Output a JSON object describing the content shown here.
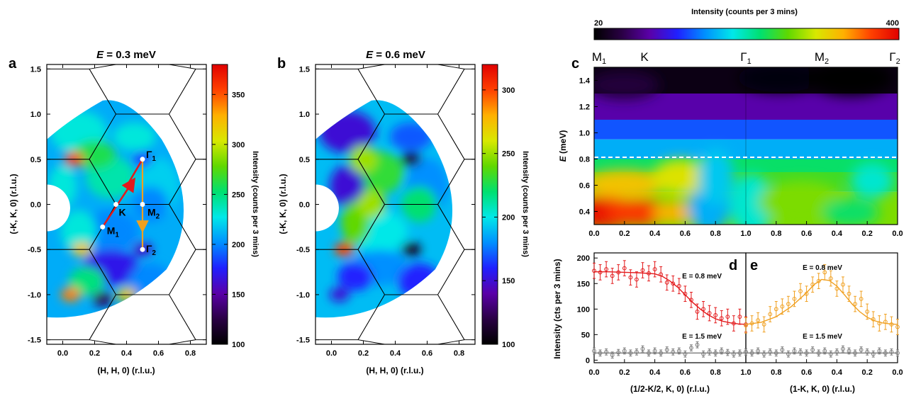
{
  "figure": {
    "colors": {
      "red": "#e31a1c",
      "orange": "#f0a020",
      "gray": "#7a7a7a",
      "hex": "#000000"
    },
    "colormap": [
      "#000000",
      "#2a0044",
      "#5a00a8",
      "#2020ff",
      "#0090ff",
      "#00e8e8",
      "#00e070",
      "#60d800",
      "#d8e800",
      "#ffb000",
      "#ff4000",
      "#e00000"
    ]
  },
  "panels": {
    "a": {
      "letter": "a",
      "title_E": "E",
      "title_val": " = 0.3 meV",
      "xlabel": "(H, H, 0) (r.l.u.)",
      "ylabel": "(-K, K, 0) (r.l.u.)",
      "xticks": [
        "0.0",
        "0.2",
        "0.4",
        "0.6",
        "0.8"
      ],
      "yticks": [
        "1.5",
        "1.0",
        "0.5",
        "0.0",
        "-0.5",
        "-1.0",
        "-1.5"
      ],
      "colorbar": {
        "label": "Intensity (counts per 3 mins)",
        "ticks": [
          "350",
          "300",
          "250",
          "200",
          "150",
          "100"
        ]
      },
      "points": {
        "gamma1": "Γ",
        "gamma1_sub": "1",
        "K": "K",
        "M2": "M",
        "M2_sub": "2",
        "M1": "M",
        "M1_sub": "1",
        "gamma2": "Γ",
        "gamma2_sub": "2"
      }
    },
    "b": {
      "letter": "b",
      "title_E": "E",
      "title_val": " = 0.6 meV",
      "xlabel": "(H, H, 0) (r.l.u.)",
      "ylabel": "(-K, K, 0) (r.l.u.)",
      "xticks": [
        "0.0",
        "0.2",
        "0.4",
        "0.6",
        "0.8"
      ],
      "yticks": [
        "1.5",
        "1.0",
        "0.5",
        "0.0",
        "-0.5",
        "-1.0",
        "-1.5"
      ],
      "colorbar": {
        "label": "Intensity (counts per 3 mins)",
        "ticks": [
          "300",
          "250",
          "200",
          "150",
          "100"
        ]
      }
    },
    "c": {
      "letter": "c",
      "colorbar": {
        "label": "Intensity (counts per 3 mins)",
        "min": "20",
        "max": "400"
      },
      "top_labels": {
        "M1": "M",
        "M1_sub": "1",
        "K": "K",
        "G1": "Γ",
        "G1_sub": "1",
        "M2": "M",
        "M2_sub": "2",
        "G2": "Γ",
        "G2_sub": "2"
      },
      "ylabel": "E (meV)",
      "yticks": [
        "1.4",
        "1.2",
        "1.0",
        "0.8",
        "0.6",
        "0.4"
      ],
      "xticks_left": [
        "0.0",
        "0.2",
        "0.4",
        "0.6",
        "0.8",
        "1.0"
      ],
      "xticks_right": [
        "0.8",
        "0.6",
        "0.4",
        "0.2",
        "0.0"
      ]
    },
    "d": {
      "letter": "d",
      "ylabel": "Intensity (cts per 3 mins)",
      "yticks": [
        "200",
        "150",
        "100",
        "50",
        "0"
      ],
      "xlabel": "(1/2-K/2, K, 0) (r.l.u.)",
      "xticks": [
        "0.0",
        "0.2",
        "0.4",
        "0.6",
        "0.8",
        "1.0"
      ],
      "label_high": "E = 0.8 meV",
      "label_low": "E = 1.5 meV"
    },
    "e": {
      "letter": "e",
      "xlabel": "(1-K, K, 0) (r.l.u.)",
      "xticks": [
        "1.0",
        "0.8",
        "0.6",
        "0.4",
        "0.2",
        "0.0"
      ],
      "label_high": "E = 0.8 meV",
      "label_low": "E = 1.5 meV"
    }
  },
  "chart_data": [
    {
      "type": "heatmap",
      "panel": "a",
      "title": "E = 0.3 meV",
      "xlabel": "(H, H, 0) (r.l.u.)",
      "ylabel": "(-K, K, 0) (r.l.u.)",
      "xlim": [
        -0.1,
        0.9
      ],
      "ylim": [
        -1.55,
        1.55
      ],
      "zlim": [
        100,
        380
      ],
      "hotspots": [
        {
          "x": 0.07,
          "y": 0.5,
          "z": 360
        },
        {
          "x": 0.05,
          "y": -1.0,
          "z": 340
        },
        {
          "x": 0.12,
          "y": -0.5,
          "z": 320
        },
        {
          "x": 0.4,
          "y": -1.0,
          "z": 320
        },
        {
          "x": 0.5,
          "y": 0.5,
          "z": 180
        },
        {
          "x": 0.5,
          "y": -0.5,
          "z": 160
        },
        {
          "x": 0.25,
          "y": -1.05,
          "z": 130
        }
      ]
    },
    {
      "type": "heatmap",
      "panel": "b",
      "title": "E = 0.6 meV",
      "xlabel": "(H, H, 0) (r.l.u.)",
      "ylabel": "(-K, K, 0) (r.l.u.)",
      "xlim": [
        -0.1,
        0.9
      ],
      "ylim": [
        -1.55,
        1.55
      ],
      "zlim": [
        100,
        320
      ],
      "hotspots": [
        {
          "x": 0.08,
          "y": -0.5,
          "z": 300
        },
        {
          "x": 0.5,
          "y": 0.5,
          "z": 110
        },
        {
          "x": 0.5,
          "y": -0.5,
          "z": 110
        },
        {
          "x": 0.05,
          "y": -1.0,
          "z": 150
        }
      ]
    },
    {
      "type": "heatmap",
      "panel": "c",
      "ylabel": "E (meV)",
      "ylim": [
        0.3,
        1.5
      ],
      "zlim": [
        20,
        400
      ],
      "cut_energy": 0.8
    },
    {
      "type": "scatter",
      "panel": "d",
      "xlabel": "(1/2-K/2, K, 0) (r.l.u.)",
      "ylabel": "Intensity (cts per 3 mins)",
      "xlim": [
        0,
        1
      ],
      "ylim": [
        -5,
        210
      ],
      "series": [
        {
          "name": "E = 0.8 meV",
          "x": [
            0,
            0.04,
            0.08,
            0.12,
            0.16,
            0.2,
            0.24,
            0.28,
            0.32,
            0.36,
            0.4,
            0.44,
            0.48,
            0.52,
            0.56,
            0.6,
            0.64,
            0.68,
            0.72,
            0.76,
            0.8,
            0.84,
            0.88,
            0.92,
            0.96,
            1.0
          ],
          "y": [
            175,
            172,
            178,
            165,
            172,
            180,
            162,
            158,
            176,
            170,
            178,
            168,
            152,
            150,
            145,
            130,
            118,
            95,
            100,
            92,
            88,
            82,
            85,
            72,
            85,
            70
          ],
          "err": [
            15,
            15,
            15,
            15,
            15,
            15,
            15,
            15,
            15,
            15,
            15,
            15,
            15,
            15,
            15,
            15,
            15,
            15,
            15,
            15,
            15,
            15,
            15,
            15,
            15,
            15
          ],
          "fit": [
            [
              0,
              173
            ],
            [
              0.1,
              173
            ],
            [
              0.2,
              172
            ],
            [
              0.3,
              171
            ],
            [
              0.4,
              169
            ],
            [
              0.45,
              164
            ],
            [
              0.5,
              155
            ],
            [
              0.55,
              143
            ],
            [
              0.6,
              128
            ],
            [
              0.65,
              113
            ],
            [
              0.7,
              100
            ],
            [
              0.75,
              89
            ],
            [
              0.8,
              81
            ],
            [
              0.85,
              76
            ],
            [
              0.9,
              73
            ],
            [
              0.95,
              71
            ],
            [
              1.0,
              70
            ]
          ]
        },
        {
          "name": "E = 1.5 meV",
          "x": [
            0,
            0.04,
            0.08,
            0.12,
            0.16,
            0.2,
            0.24,
            0.28,
            0.32,
            0.36,
            0.4,
            0.44,
            0.48,
            0.52,
            0.56,
            0.6,
            0.64,
            0.68,
            0.72,
            0.76,
            0.8,
            0.84,
            0.88,
            0.92,
            0.96,
            1.0
          ],
          "y": [
            18,
            14,
            16,
            10,
            15,
            18,
            14,
            16,
            22,
            14,
            18,
            14,
            20,
            16,
            18,
            12,
            24,
            30,
            12,
            16,
            14,
            18,
            15,
            12,
            14,
            16
          ],
          "err": [
            6,
            6,
            6,
            6,
            6,
            6,
            6,
            6,
            6,
            6,
            6,
            6,
            6,
            6,
            6,
            6,
            6,
            6,
            6,
            6,
            6,
            6,
            6,
            6,
            6,
            6
          ],
          "fit": [
            [
              0,
              14
            ],
            [
              1,
              14
            ]
          ]
        }
      ]
    },
    {
      "type": "scatter",
      "panel": "e",
      "xlabel": "(1-K, K, 0) (r.l.u.)",
      "xlim": [
        1,
        0
      ],
      "ylim": [
        -5,
        210
      ],
      "series": [
        {
          "name": "E = 0.8 meV",
          "x": [
            1.0,
            0.96,
            0.92,
            0.88,
            0.84,
            0.8,
            0.76,
            0.72,
            0.68,
            0.64,
            0.6,
            0.56,
            0.52,
            0.48,
            0.44,
            0.4,
            0.36,
            0.32,
            0.28,
            0.24,
            0.2,
            0.16,
            0.12,
            0.08,
            0.04,
            0.0
          ],
          "y": [
            68,
            72,
            78,
            70,
            90,
            100,
            105,
            110,
            120,
            135,
            130,
            148,
            155,
            172,
            160,
            140,
            148,
            130,
            110,
            120,
            95,
            80,
            72,
            75,
            70,
            65
          ],
          "err": [
            15,
            15,
            15,
            15,
            15,
            15,
            15,
            15,
            15,
            15,
            15,
            15,
            15,
            15,
            15,
            15,
            15,
            15,
            15,
            15,
            15,
            15,
            15,
            15,
            15,
            15
          ],
          "fit": [
            [
              1,
              70
            ],
            [
              0.9,
              74
            ],
            [
              0.8,
              85
            ],
            [
              0.7,
              105
            ],
            [
              0.6,
              132
            ],
            [
              0.55,
              148
            ],
            [
              0.5,
              158
            ],
            [
              0.45,
              156
            ],
            [
              0.4,
              145
            ],
            [
              0.35,
              128
            ],
            [
              0.3,
              110
            ],
            [
              0.25,
              95
            ],
            [
              0.2,
              84
            ],
            [
              0.15,
              77
            ],
            [
              0.1,
              73
            ],
            [
              0.05,
              71
            ],
            [
              0,
              70
            ]
          ]
        },
        {
          "name": "E = 1.5 meV",
          "x": [
            1.0,
            0.96,
            0.92,
            0.88,
            0.84,
            0.8,
            0.76,
            0.72,
            0.68,
            0.64,
            0.6,
            0.56,
            0.52,
            0.48,
            0.44,
            0.4,
            0.36,
            0.32,
            0.28,
            0.24,
            0.2,
            0.16,
            0.12,
            0.08,
            0.04,
            0.0
          ],
          "y": [
            16,
            14,
            18,
            12,
            16,
            14,
            20,
            12,
            18,
            16,
            14,
            20,
            14,
            18,
            12,
            16,
            22,
            18,
            14,
            20,
            16,
            12,
            18,
            14,
            16,
            14
          ],
          "err": [
            6,
            6,
            6,
            6,
            6,
            6,
            6,
            6,
            6,
            6,
            6,
            6,
            6,
            6,
            6,
            6,
            6,
            6,
            6,
            6,
            6,
            6,
            6,
            6,
            6,
            6
          ],
          "fit": [
            [
              1,
              14
            ],
            [
              0,
              14
            ]
          ]
        }
      ]
    }
  ]
}
